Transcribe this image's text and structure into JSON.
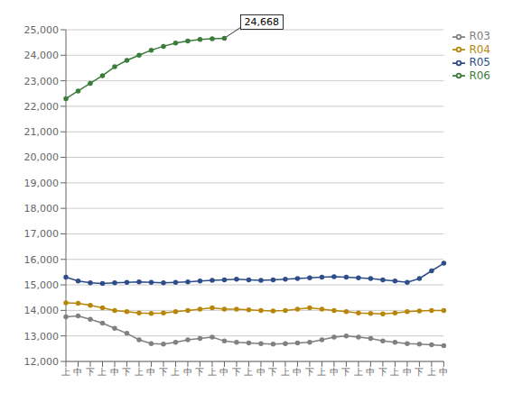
{
  "chart_data": {
    "type": "line",
    "categories": [
      "上",
      "中",
      "下",
      "上",
      "中",
      "下",
      "上",
      "中",
      "下",
      "上",
      "中",
      "下",
      "上",
      "中",
      "下",
      "上",
      "中",
      "下",
      "上",
      "中",
      "下",
      "上",
      "中",
      "下",
      "上",
      "中",
      "下",
      "上",
      "中",
      "下",
      "上",
      "中"
    ],
    "series": [
      {
        "name": "R03",
        "color": "#808080",
        "marker": "o",
        "values": [
          13750,
          13780,
          13650,
          13500,
          13300,
          13100,
          12850,
          12700,
          12680,
          12750,
          12850,
          12900,
          12950,
          12800,
          12750,
          12720,
          12700,
          12680,
          12700,
          12720,
          12750,
          12850,
          12950,
          13000,
          12950,
          12900,
          12800,
          12750,
          12700,
          12680,
          12650,
          12620
        ]
      },
      {
        "name": "R04",
        "color": "#b8860b",
        "marker": "o",
        "values": [
          14300,
          14280,
          14200,
          14100,
          14000,
          13950,
          13900,
          13880,
          13900,
          13950,
          14000,
          14050,
          14100,
          14050,
          14050,
          14020,
          14000,
          13980,
          14000,
          14050,
          14100,
          14050,
          14000,
          13950,
          13900,
          13880,
          13860,
          13900,
          13950,
          13980,
          14000,
          14000
        ]
      },
      {
        "name": "R05",
        "color": "#2e4d8a",
        "marker": "o",
        "values": [
          15300,
          15150,
          15080,
          15060,
          15080,
          15100,
          15120,
          15100,
          15080,
          15100,
          15120,
          15150,
          15180,
          15200,
          15220,
          15200,
          15180,
          15200,
          15220,
          15250,
          15280,
          15300,
          15320,
          15300,
          15280,
          15250,
          15200,
          15150,
          15100,
          15250,
          15550,
          15850
        ]
      },
      {
        "name": "R06",
        "color": "#3a7d3a",
        "marker": "o",
        "values": [
          22300,
          22600,
          22900,
          23200,
          23550,
          23800,
          24000,
          24200,
          24350,
          24480,
          24560,
          24620,
          24650,
          24668,
          null,
          null,
          null,
          null,
          null,
          null,
          null,
          null,
          null,
          null,
          null,
          null,
          null,
          null,
          null,
          null,
          null,
          null
        ]
      }
    ],
    "ylim": [
      12000,
      25000
    ],
    "yticks": [
      {
        "value": 12000,
        "label": "12,000"
      },
      {
        "value": 13000,
        "label": "13,000"
      },
      {
        "value": 14000,
        "label": "14,000"
      },
      {
        "value": 15000,
        "label": "15,000"
      },
      {
        "value": 16000,
        "label": "16,000"
      },
      {
        "value": 17000,
        "label": "17,000"
      },
      {
        "value": 18000,
        "label": "18,000"
      },
      {
        "value": 19000,
        "label": "19,000"
      },
      {
        "value": 20000,
        "label": "20,000"
      },
      {
        "value": 21000,
        "label": "21,000"
      },
      {
        "value": 22000,
        "label": "22,000"
      },
      {
        "value": 23000,
        "label": "23,000"
      },
      {
        "value": 24000,
        "label": "24,000"
      },
      {
        "value": 25000,
        "label": "25,000"
      }
    ],
    "grid": true,
    "legend": "upper right",
    "annotations": [
      {
        "text": "24,668",
        "x": 13,
        "y": 24668
      }
    ]
  }
}
